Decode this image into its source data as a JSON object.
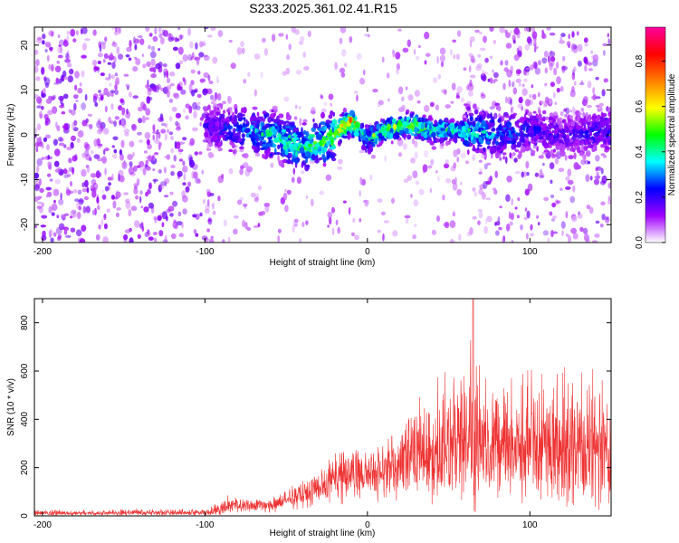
{
  "title": "S233.2025.361.02.41.R15",
  "chart_data": [
    {
      "type": "heatmap",
      "xlabel": "Height of straight line (km)",
      "ylabel": "Frequency (Hz)",
      "xlim": [
        -205,
        150
      ],
      "ylim": [
        -24,
        24
      ],
      "xticks": [
        -200,
        -100,
        0,
        100
      ],
      "yticks": [
        -20,
        -10,
        0,
        10,
        20
      ],
      "colorbar": {
        "label": "Normalized spectral amplitude",
        "range": [
          0,
          0.95
        ],
        "ticks": [
          "0.0",
          "0.2",
          "0.4",
          "0.6",
          "0.8"
        ],
        "colors": [
          "#ffffff",
          "#a000ff",
          "#0000ff",
          "#00ffff",
          "#00ff00",
          "#ffff00",
          "#ff8000",
          "#ff0000",
          "#ff00a0"
        ]
      },
      "ridge": {
        "x": [
          -100,
          -80,
          -60,
          -40,
          -30,
          -20,
          -15,
          -10,
          -5,
          0,
          10,
          20,
          30,
          40,
          60,
          80,
          100,
          120,
          150
        ],
        "center_freq": [
          2,
          1,
          0,
          -3,
          -2,
          0,
          2,
          3,
          1,
          -1,
          1,
          2,
          2,
          1,
          1,
          0,
          1,
          0,
          1
        ],
        "peak_amplitude": [
          0.2,
          0.3,
          0.45,
          0.5,
          0.55,
          0.6,
          0.75,
          0.8,
          0.55,
          0.5,
          0.55,
          0.6,
          0.6,
          0.5,
          0.45,
          0.35,
          0.25,
          0.2,
          0.25
        ]
      }
    },
    {
      "type": "line",
      "xlabel": "Height of straight line (km)",
      "ylabel": "SNR (10 * v/v)",
      "xlim": [
        -205,
        150
      ],
      "ylim": [
        0,
        900
      ],
      "xticks": [
        -200,
        -100,
        0,
        100
      ],
      "yticks": [
        0,
        200,
        400,
        600,
        800
      ],
      "color": "#ee3333",
      "envelope": {
        "x": [
          -205,
          -100,
          -95,
          -85,
          -75,
          -60,
          -50,
          -40,
          -30,
          -20,
          -10,
          0,
          10,
          20,
          30,
          40,
          50,
          60,
          65,
          70,
          80,
          100,
          120,
          140,
          150
        ],
        "mean": [
          10,
          12,
          15,
          45,
          40,
          40,
          60,
          80,
          110,
          140,
          170,
          150,
          170,
          210,
          240,
          260,
          270,
          280,
          300,
          290,
          280,
          270,
          260,
          250,
          260
        ],
        "max": [
          25,
          30,
          45,
          90,
          70,
          75,
          110,
          150,
          190,
          260,
          280,
          270,
          300,
          390,
          480,
          580,
          600,
          620,
          900,
          560,
          600,
          620,
          640,
          650,
          600
        ]
      }
    }
  ]
}
